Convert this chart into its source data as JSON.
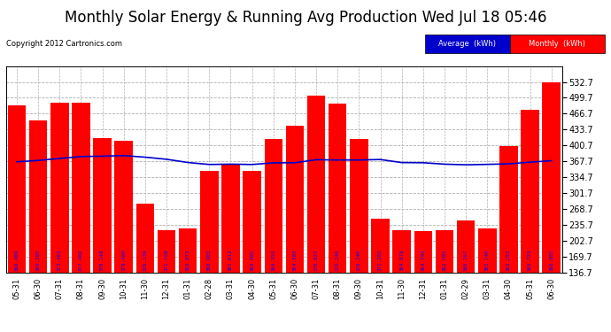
{
  "title": "Monthly Solar Energy & Running Avg Production Wed Jul 18 05:46",
  "copyright": "Copyright 2012 Cartronics.com",
  "categories": [
    "05-31",
    "06-30",
    "07-31",
    "08-31",
    "09-30",
    "10-31",
    "11-30",
    "12-31",
    "01-31",
    "02-28",
    "03-31",
    "04-30",
    "05-31",
    "06-30",
    "07-31",
    "08-31",
    "09-30",
    "10-31",
    "11-30",
    "12-31",
    "01-31",
    "02-29",
    "03-31",
    "04-30",
    "05-31",
    "06-30"
  ],
  "monthly_values": [
    484,
    452,
    490,
    490,
    415,
    410,
    280,
    224,
    228,
    348,
    360,
    348,
    414,
    442,
    504,
    488,
    414,
    248,
    224,
    222,
    224,
    244,
    228,
    400,
    474,
    532
  ],
  "avg_values": [
    366.489,
    369.295,
    373.463,
    377.402,
    378.148,
    379.409,
    376.139,
    371.758,
    365.073,
    360.903,
    361.612,
    360.865,
    364.353,
    364.503,
    370.827,
    370.246,
    370.246,
    371.265,
    364.878,
    364.594,
    361.593,
    360.267,
    361.146,
    362.252,
    365.723,
    368.802
  ],
  "bar_color": "#ff0000",
  "line_color": "#0000cc",
  "background_color": "#ffffff",
  "plot_bg_color": "#ffffff",
  "grid_color": "#b0b0b0",
  "ylabel_right": [
    "136.7",
    "169.7",
    "202.7",
    "235.7",
    "268.7",
    "301.7",
    "334.7",
    "367.7",
    "400.7",
    "433.7",
    "466.7",
    "499.7",
    "532.7"
  ],
  "ymin": 136.7,
  "ymax": 565.0,
  "title_fontsize": 12,
  "legend_avg_label": "Average  (kWh)",
  "legend_monthly_label": "Monthly  (kWh)",
  "avg_label_color": "#0000ff",
  "bar_label_color": "#0000ff"
}
